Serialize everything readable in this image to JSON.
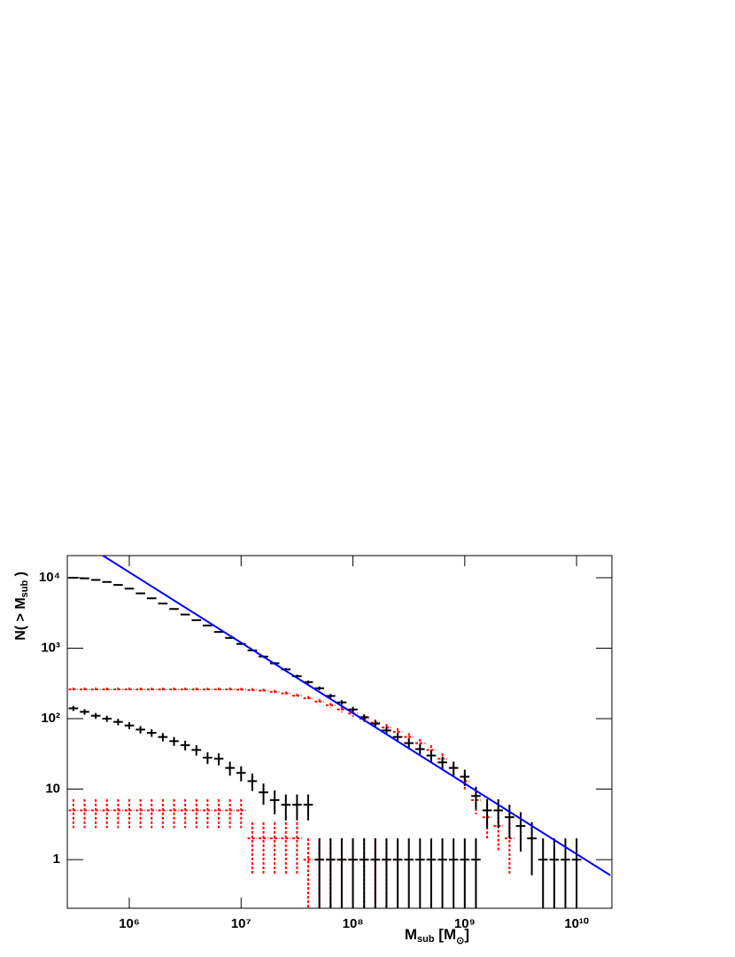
{
  "chart_data": {
    "type": "errorbar",
    "xlabel": {
      "main": "M",
      "sub": "sub",
      "unit": " [M",
      "unit_sub": "⊙",
      "end": "]"
    },
    "ylabel": {
      "main": "N( > M",
      "sub": "sub",
      "end": " )"
    },
    "log_x": true,
    "log_y": true,
    "xlim": [
      279000.0,
      20700000000.0
    ],
    "ylim": [
      0.204,
      20600
    ],
    "xticks": [
      {
        "value": 1000000.0,
        "label": "10⁶"
      },
      {
        "value": 10000000.0,
        "label": "10⁷"
      },
      {
        "value": 100000000.0,
        "label": "10⁸"
      },
      {
        "value": 1000000000.0,
        "label": "10⁹"
      },
      {
        "value": 10000000000.0,
        "label": "10¹⁰"
      }
    ],
    "yticks": [
      1,
      10,
      {
        "value": 100,
        "label": "10²"
      },
      {
        "value": 1000,
        "label": "10³"
      },
      {
        "value": 10000,
        "label": "10⁴"
      }
    ],
    "x": [
      316200.0,
      398100.0,
      501200.0,
      631000.0,
      794300.0,
      1000000.0,
      1259000.0,
      1585000.0,
      1995000.0,
      2512000.0,
      3162000.0,
      3981000.0,
      5012000.0,
      6310000.0,
      7943000.0,
      10000000.0,
      12590000.0,
      15850000.0,
      19950000.0,
      25120000.0,
      31620000.0,
      39810000.0,
      50120000.0,
      63100000.0,
      79430000.0,
      100000000.0,
      125900000.0,
      158500000.0,
      199500000.0,
      251200000.0,
      316200000.0,
      398100000.0,
      501200000.0,
      631000000.0,
      794300000.0,
      1000000000.0,
      1259000000.0,
      1585000000.0,
      1995000000.0,
      2512000000.0,
      3162000000.0,
      3981000000.0,
      5012000000.0,
      6310000000.0,
      7943000000.0,
      10000000000.0
    ],
    "series": [
      {
        "color": "#ff0000",
        "dashed": true,
        "values": [
          260,
          260,
          260,
          260,
          260,
          260,
          260,
          260,
          260,
          260,
          260,
          260,
          260,
          260,
          260,
          258,
          255,
          250,
          240,
          228,
          212,
          195,
          175,
          155,
          135,
          118,
          100,
          88,
          75,
          65,
          55,
          45,
          36,
          27,
          20,
          13,
          7,
          4,
          3,
          2,
          null,
          null,
          null,
          null,
          null,
          null
        ],
        "errors": [
          16.1,
          16.1,
          16.1,
          16.1,
          16.1,
          16.1,
          16.1,
          16.1,
          16.1,
          16.1,
          16.1,
          16.1,
          16.1,
          16.1,
          16.1,
          16.1,
          16,
          15.8,
          15.5,
          15.1,
          14.6,
          14,
          13.2,
          12.4,
          11.6,
          10.9,
          10,
          9.4,
          8.7,
          8.1,
          7.4,
          6.7,
          6,
          5.2,
          4.5,
          3.6,
          2.6,
          2,
          1.7,
          1.4,
          null,
          null,
          null,
          null,
          null,
          null
        ]
      },
      {
        "color": "#ff0000",
        "dashed": true,
        "values": [
          5,
          5,
          5,
          5,
          5,
          5,
          5,
          5,
          5,
          5,
          5,
          5,
          5,
          5,
          5,
          5,
          2,
          2,
          2,
          2,
          2,
          1,
          1,
          1,
          1,
          1,
          1,
          1,
          1,
          1,
          null,
          null,
          null,
          null,
          null,
          null,
          null,
          null,
          null,
          null,
          null,
          null,
          null,
          null,
          null,
          null
        ],
        "errors": [
          2.2,
          2.2,
          2.2,
          2.2,
          2.2,
          2.2,
          2.2,
          2.2,
          2.2,
          2.2,
          2.2,
          2.2,
          2.2,
          2.2,
          2.2,
          2.2,
          1.4,
          1.4,
          1.4,
          1.4,
          1.4,
          1,
          1,
          1,
          1,
          1,
          1,
          1,
          1,
          1,
          null,
          null,
          null,
          null,
          null,
          null,
          null,
          null,
          null,
          null,
          null,
          null,
          null,
          null,
          null,
          null
        ]
      },
      {
        "color": "#000000",
        "dashed": false,
        "values": [
          10000,
          9800,
          9300,
          8700,
          7900,
          7000,
          6000,
          5100,
          4300,
          3600,
          3000,
          2500,
          2100,
          1700,
          1400,
          1150,
          930,
          760,
          610,
          500,
          400,
          330,
          270,
          210,
          170,
          135,
          105,
          85,
          68,
          55,
          45,
          37,
          30,
          24,
          20,
          15,
          8,
          5,
          5,
          4,
          3,
          2,
          1,
          1,
          1,
          1
        ],
        "errors": [
          100,
          99,
          96,
          93,
          89,
          84,
          77,
          71,
          66,
          60,
          55,
          50,
          46,
          41,
          37,
          34,
          30,
          28,
          25,
          22,
          20,
          18,
          16,
          14,
          13,
          12,
          10,
          9.2,
          8.2,
          7.4,
          6.7,
          6.1,
          5.5,
          4.9,
          4.5,
          3.9,
          2.8,
          2.2,
          2.2,
          2,
          1.7,
          1.4,
          1,
          1,
          1,
          1
        ]
      },
      {
        "color": "#000000",
        "dashed": false,
        "values": [
          140,
          125,
          110,
          100,
          90,
          80,
          70,
          63,
          55,
          48,
          42,
          36,
          28,
          27,
          20,
          17,
          13,
          9,
          7,
          6,
          6,
          6,
          1,
          1,
          1,
          1,
          1,
          1,
          1,
          1,
          1,
          1,
          1,
          1,
          1,
          1,
          1,
          null,
          null,
          null,
          null,
          null,
          null,
          null,
          null,
          null
        ],
        "errors": [
          11.8,
          11.2,
          10.5,
          10,
          9.5,
          8.9,
          8.4,
          7.9,
          7.4,
          6.9,
          6.5,
          6,
          5.3,
          5.2,
          4.5,
          4.1,
          3.6,
          3,
          2.6,
          2.4,
          2.4,
          2.4,
          1,
          1,
          1,
          1,
          1,
          1,
          1,
          1,
          1,
          1,
          1,
          1,
          1,
          1,
          1,
          null,
          null,
          null,
          null,
          null,
          null,
          null,
          null,
          null
        ]
      },
      {
        "type": "line",
        "color": "#0000ff",
        "x": [
          520000.0,
          20000000000.0
        ],
        "values": [
          23000,
          0.6
        ]
      }
    ]
  }
}
